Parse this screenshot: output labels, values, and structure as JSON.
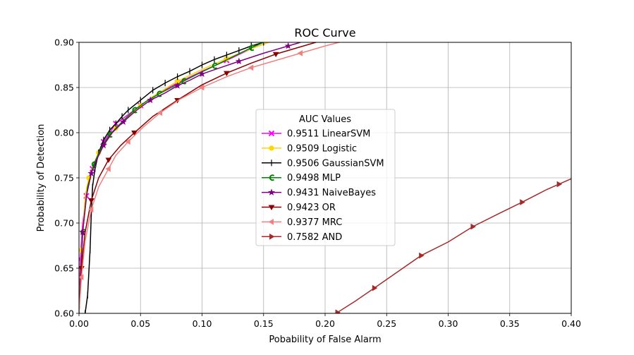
{
  "chart_data": {
    "type": "line",
    "title": "ROC Curve",
    "xlabel": "Pobability of False Alarm",
    "ylabel": "Probability of Detection",
    "xlim": [
      0.0,
      0.4
    ],
    "ylim": [
      0.6,
      0.9
    ],
    "x_ticks": [
      "0.00",
      "0.05",
      "0.10",
      "0.15",
      "0.20",
      "0.25",
      "0.30",
      "0.35",
      "0.40"
    ],
    "y_ticks": [
      "0.60",
      "0.65",
      "0.70",
      "0.75",
      "0.80",
      "0.85",
      "0.90"
    ],
    "grid": true,
    "legend": {
      "title": "AUC Values",
      "placement": "center"
    },
    "series": [
      {
        "name": "0.9511 LinearSVM",
        "color": "#ff00ff",
        "marker": "x",
        "x": [
          0.0,
          0.001,
          0.003,
          0.006,
          0.008,
          0.011,
          0.016,
          0.02,
          0.025,
          0.03,
          0.04,
          0.05,
          0.06,
          0.08,
          0.1,
          0.12,
          0.14,
          0.16
        ],
        "y": [
          0.6,
          0.66,
          0.7,
          0.73,
          0.75,
          0.76,
          0.775,
          0.79,
          0.8,
          0.81,
          0.82,
          0.83,
          0.84,
          0.855,
          0.868,
          0.88,
          0.893,
          0.903
        ]
      },
      {
        "name": "0.9509 Logistic",
        "color": "#ffd700",
        "marker": "o",
        "x": [
          0.0,
          0.002,
          0.005,
          0.008,
          0.012,
          0.016,
          0.022,
          0.03,
          0.04,
          0.05,
          0.06,
          0.08,
          0.1,
          0.12,
          0.14,
          0.16
        ],
        "y": [
          0.6,
          0.67,
          0.73,
          0.75,
          0.765,
          0.778,
          0.79,
          0.805,
          0.818,
          0.83,
          0.84,
          0.857,
          0.87,
          0.882,
          0.893,
          0.903
        ]
      },
      {
        "name": "0.9506 GaussianSVM",
        "color": "#000000",
        "marker": "vline",
        "x": [
          0.005,
          0.007,
          0.009,
          0.01,
          0.011,
          0.013,
          0.016,
          0.02,
          0.025,
          0.03,
          0.035,
          0.04,
          0.05,
          0.06,
          0.07,
          0.08,
          0.09,
          0.1,
          0.11,
          0.12,
          0.13,
          0.14,
          0.15
        ],
        "y": [
          0.6,
          0.62,
          0.67,
          0.71,
          0.74,
          0.76,
          0.778,
          0.792,
          0.803,
          0.81,
          0.818,
          0.825,
          0.836,
          0.847,
          0.855,
          0.862,
          0.868,
          0.875,
          0.881,
          0.886,
          0.891,
          0.896,
          0.9
        ]
      },
      {
        "name": "0.9498 MLP",
        "color": "#008000",
        "marker": "c",
        "x": [
          0.0,
          0.003,
          0.007,
          0.012,
          0.018,
          0.025,
          0.035,
          0.045,
          0.055,
          0.065,
          0.075,
          0.085,
          0.095,
          0.11,
          0.125,
          0.14,
          0.155
        ],
        "y": [
          0.6,
          0.69,
          0.74,
          0.765,
          0.783,
          0.798,
          0.812,
          0.825,
          0.835,
          0.843,
          0.85,
          0.857,
          0.864,
          0.874,
          0.884,
          0.894,
          0.903
        ]
      },
      {
        "name": "0.9431 NaiveBayes",
        "color": "#800080",
        "marker": "star",
        "x": [
          0.0,
          0.003,
          0.006,
          0.01,
          0.015,
          0.02,
          0.027,
          0.036,
          0.046,
          0.058,
          0.07,
          0.08,
          0.09,
          0.1,
          0.115,
          0.13,
          0.15,
          0.17,
          0.185
        ],
        "y": [
          0.6,
          0.69,
          0.73,
          0.755,
          0.772,
          0.786,
          0.8,
          0.812,
          0.824,
          0.836,
          0.844,
          0.852,
          0.858,
          0.865,
          0.872,
          0.879,
          0.888,
          0.896,
          0.902
        ]
      },
      {
        "name": "0.9423 OR",
        "color": "#8b0000",
        "marker": "tri_down",
        "x": [
          0.0,
          0.002,
          0.005,
          0.01,
          0.016,
          0.024,
          0.034,
          0.045,
          0.06,
          0.08,
          0.1,
          0.12,
          0.14,
          0.16,
          0.18,
          0.2
        ],
        "y": [
          0.6,
          0.65,
          0.69,
          0.725,
          0.75,
          0.77,
          0.786,
          0.8,
          0.818,
          0.836,
          0.853,
          0.866,
          0.877,
          0.887,
          0.895,
          0.903
        ]
      },
      {
        "name": "0.9377 MRC",
        "color": "#f08080",
        "marker": "tri_left",
        "x": [
          0.0,
          0.002,
          0.005,
          0.01,
          0.016,
          0.024,
          0.03,
          0.04,
          0.052,
          0.066,
          0.082,
          0.1,
          0.12,
          0.14,
          0.16,
          0.18,
          0.2,
          0.22
        ],
        "y": [
          0.6,
          0.64,
          0.68,
          0.715,
          0.74,
          0.76,
          0.775,
          0.79,
          0.806,
          0.822,
          0.837,
          0.85,
          0.862,
          0.872,
          0.88,
          0.888,
          0.896,
          0.903
        ]
      },
      {
        "name": "0.7582 AND",
        "color": "#a52a2a",
        "marker": "tri_right",
        "x": [
          0.2,
          0.21,
          0.225,
          0.24,
          0.26,
          0.278,
          0.3,
          0.32,
          0.342,
          0.36,
          0.38,
          0.39,
          0.4
        ],
        "y": [
          0.595,
          0.601,
          0.614,
          0.628,
          0.647,
          0.664,
          0.679,
          0.696,
          0.711,
          0.723,
          0.737,
          0.743,
          0.749
        ]
      }
    ]
  }
}
